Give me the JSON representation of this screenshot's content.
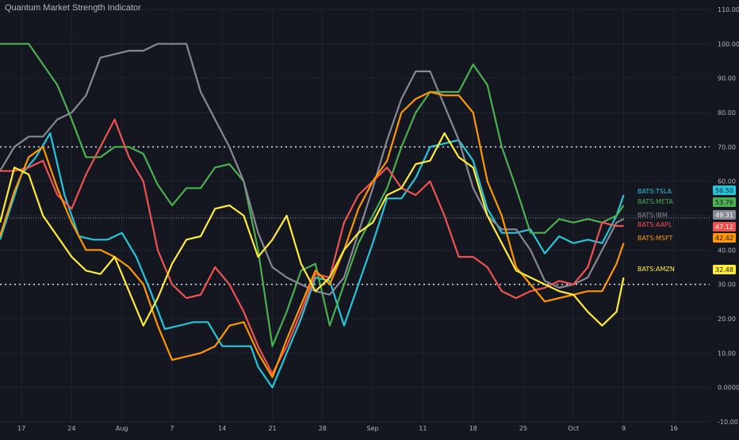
{
  "title": "Quantum Market Strength Indicator",
  "colors": {
    "background": "#141720",
    "grid": "#1f2430",
    "axis_text": "#b2b5be"
  },
  "chart_data": {
    "type": "line",
    "title": "Quantum Market Strength Indicator",
    "ylim": [
      -10,
      110
    ],
    "y_ticks": [
      -10,
      0,
      10,
      20,
      30,
      40,
      50,
      60,
      70,
      80,
      90,
      100,
      110
    ],
    "y_tick_labels": [
      "-10.00",
      "0.0000",
      "10.00",
      "20.00",
      "30.00",
      "40.00",
      "50.00",
      "60.00",
      "70.00",
      "80.00",
      "90.00",
      "100.00",
      "110.00"
    ],
    "x_ticks": [
      {
        "x": 17,
        "label": "17"
      },
      {
        "x": 24,
        "label": "24"
      },
      {
        "x": 31,
        "label": "Aug"
      },
      {
        "x": 38,
        "label": "7"
      },
      {
        "x": 45,
        "label": "14"
      },
      {
        "x": 52,
        "label": "21"
      },
      {
        "x": 59,
        "label": "28"
      },
      {
        "x": 66,
        "label": "Sep"
      },
      {
        "x": 73,
        "label": "11"
      },
      {
        "x": 80,
        "label": "18"
      },
      {
        "x": 87,
        "label": "25"
      },
      {
        "x": 94,
        "label": "Oct"
      },
      {
        "x": 101,
        "label": "9"
      },
      {
        "x": 108,
        "label": "16"
      }
    ],
    "xlim": [
      14,
      113
    ],
    "reference_lines": [
      70,
      30
    ],
    "current_line": 49.31,
    "grid": true,
    "series": [
      {
        "name": "BATS:TSLA",
        "color": "#26c6da",
        "last": "56.50",
        "x": [
          14,
          17,
          19,
          21,
          23,
          25,
          27,
          29,
          31,
          33,
          35,
          37,
          39,
          41,
          43,
          45,
          47,
          49,
          50,
          52,
          54,
          56,
          58,
          60,
          62,
          64,
          66,
          68,
          70,
          72,
          74,
          76,
          78,
          80,
          82,
          84,
          86,
          88,
          90,
          92,
          94,
          96,
          98,
          100,
          101
        ],
        "y": [
          43,
          62,
          67,
          74,
          56,
          44,
          43,
          43,
          45,
          38,
          28,
          17,
          18,
          19,
          19,
          12,
          12,
          12,
          6,
          0,
          10,
          20,
          32,
          31,
          18,
          30,
          42,
          55,
          55,
          61,
          70,
          71,
          72,
          66,
          52,
          45,
          45,
          46,
          39,
          44,
          42,
          43,
          42,
          50,
          56
        ]
      },
      {
        "name": "BATS:META",
        "color": "#4caf50",
        "last": "53.76",
        "x": [
          14,
          16,
          18,
          20,
          22,
          24,
          26,
          28,
          30,
          32,
          34,
          36,
          38,
          40,
          42,
          44,
          46,
          48,
          50,
          52,
          54,
          56,
          58,
          60,
          62,
          64,
          66,
          68,
          70,
          72,
          74,
          76,
          78,
          80,
          82,
          84,
          86,
          88,
          90,
          92,
          94,
          96,
          98,
          100,
          101
        ],
        "y": [
          100,
          100,
          100,
          94,
          88,
          78,
          67,
          67,
          70,
          70,
          68,
          59,
          53,
          58,
          58,
          64,
          65,
          60,
          40,
          12,
          22,
          34,
          36,
          18,
          30,
          42,
          50,
          58,
          70,
          80,
          86,
          86,
          86,
          94,
          88,
          70,
          58,
          45,
          45,
          49,
          48,
          49,
          48,
          50,
          53
        ]
      },
      {
        "name": "BATS:IBM",
        "color": "#868993",
        "last": "49.31",
        "x": [
          14,
          16,
          18,
          20,
          22,
          24,
          26,
          28,
          30,
          32,
          34,
          36,
          38,
          40,
          42,
          44,
          46,
          48,
          50,
          52,
          54,
          56,
          58,
          60,
          62,
          64,
          66,
          68,
          70,
          72,
          74,
          76,
          78,
          80,
          82,
          84,
          86,
          88,
          90,
          92,
          94,
          96,
          98,
          100,
          101
        ],
        "y": [
          63,
          70,
          73,
          73,
          78,
          80,
          85,
          96,
          97,
          98,
          98,
          100,
          100,
          100,
          86,
          78,
          70,
          60,
          45,
          35,
          32,
          30,
          28,
          27,
          32,
          45,
          58,
          72,
          84,
          92,
          92,
          82,
          72,
          58,
          50,
          46,
          46,
          40,
          31,
          29,
          30,
          32,
          40,
          48,
          49
        ]
      },
      {
        "name": "BATS:AAPL",
        "color": "#ef5350",
        "last": "47.12",
        "x": [
          14,
          16,
          18,
          20,
          22,
          24,
          26,
          28,
          30,
          32,
          34,
          36,
          38,
          40,
          42,
          44,
          46,
          48,
          50,
          52,
          54,
          56,
          58,
          60,
          62,
          64,
          66,
          68,
          70,
          72,
          74,
          76,
          78,
          80,
          82,
          84,
          86,
          88,
          90,
          92,
          94,
          96,
          98,
          100,
          101
        ],
        "y": [
          63,
          63,
          64,
          66,
          56,
          52,
          62,
          70,
          78,
          67,
          60,
          40,
          30,
          26,
          27,
          35,
          30,
          22,
          12,
          4,
          12,
          22,
          33,
          32,
          48,
          56,
          60,
          64,
          58,
          56,
          60,
          50,
          38,
          38,
          35,
          28,
          26,
          28,
          29,
          31,
          30,
          35,
          48,
          47,
          47
        ]
      },
      {
        "name": "BATS:MSFT",
        "color": "#ff9800",
        "last": "42.42",
        "x": [
          14,
          16,
          18,
          20,
          22,
          24,
          26,
          28,
          30,
          32,
          34,
          36,
          38,
          40,
          42,
          44,
          46,
          48,
          50,
          52,
          54,
          56,
          58,
          60,
          62,
          64,
          66,
          68,
          70,
          72,
          74,
          76,
          78,
          80,
          82,
          84,
          86,
          88,
          90,
          92,
          94,
          96,
          98,
          100,
          101
        ],
        "y": [
          44,
          57,
          67,
          70,
          58,
          48,
          40,
          40,
          38,
          35,
          30,
          18,
          8,
          9,
          10,
          12,
          18,
          19,
          10,
          3,
          14,
          24,
          34,
          30,
          40,
          52,
          60,
          66,
          80,
          84,
          86,
          85,
          85,
          80,
          60,
          50,
          35,
          30,
          25,
          26,
          27,
          28,
          28,
          36,
          42
        ]
      },
      {
        "name": "BATS:AMZN",
        "color": "#ffeb3b",
        "last": "32.48",
        "x": [
          14,
          16,
          18,
          20,
          22,
          24,
          26,
          28,
          30,
          32,
          34,
          36,
          38,
          40,
          42,
          44,
          46,
          48,
          50,
          52,
          54,
          56,
          58,
          60,
          62,
          64,
          66,
          68,
          70,
          72,
          74,
          76,
          78,
          80,
          82,
          84,
          86,
          88,
          90,
          92,
          94,
          96,
          98,
          100,
          101
        ],
        "y": [
          48,
          64,
          62,
          50,
          44,
          38,
          34,
          33,
          38,
          28,
          18,
          26,
          36,
          43,
          44,
          52,
          53,
          50,
          38,
          43,
          50,
          36,
          28,
          32,
          40,
          45,
          48,
          56,
          58,
          65,
          66,
          74,
          67,
          64,
          50,
          42,
          34,
          32,
          30,
          28,
          27,
          22,
          18,
          22,
          32
        ]
      }
    ]
  }
}
